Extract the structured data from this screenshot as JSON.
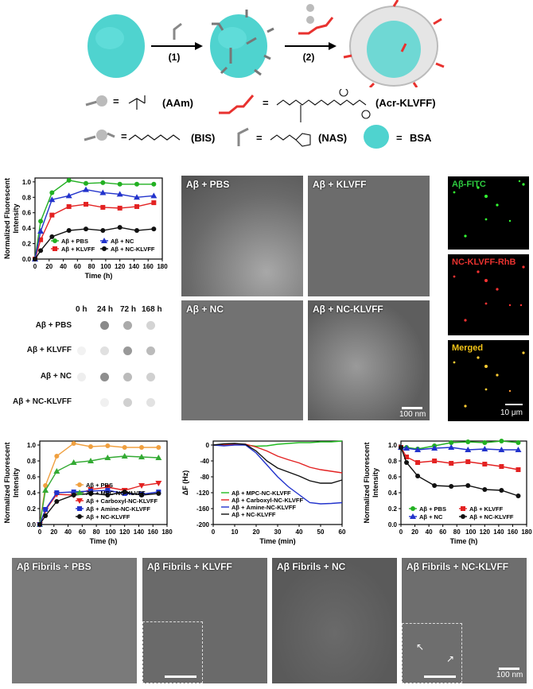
{
  "scheme": {
    "step1_label": "(1)",
    "step2_label": "(2)",
    "legend": [
      {
        "symbol": "ball-single-arm",
        "equals": "=",
        "name": "(AAm)"
      },
      {
        "symbol": "ball-double-arm",
        "equals": "=",
        "name": "(BIS)"
      },
      {
        "symbol": "red-arrow-peptide",
        "equals": "=",
        "name": "(Acr-KLVFF)"
      },
      {
        "symbol": "vinyl-linker",
        "equals": "=",
        "name": "(NAS)"
      },
      {
        "symbol": "protein-blob",
        "equals": "=",
        "name": "BSA"
      }
    ],
    "colors": {
      "bsa": "#4fd3cf",
      "peptide": "#e8322f",
      "shell": "#c8c8c8"
    }
  },
  "tem_top": {
    "panels": [
      {
        "label": "Aβ + PBS"
      },
      {
        "label": "Aβ + KLVFF"
      },
      {
        "label": "Aβ + NC"
      },
      {
        "label": "Aβ + NC-KLVFF"
      }
    ],
    "scale": "100 nm"
  },
  "fluorescence": {
    "panels": [
      {
        "label": "Aβ-FITC",
        "color": "#2ecc40"
      },
      {
        "label": "NC-KLVFF-RhB",
        "color": "#e8322f"
      },
      {
        "label": "Merged",
        "color": "#f5c518"
      }
    ],
    "scale": "10 μm"
  },
  "dot_blot": {
    "columns": [
      "0 h",
      "24 h",
      "72 h",
      "168 h"
    ],
    "rows": [
      "Aβ + PBS",
      "Aβ + KLVFF",
      "Aβ + NC",
      "Aβ + NC-KLVFF"
    ]
  },
  "tem_bottom": {
    "panels": [
      {
        "label": "Aβ Fibrils + PBS"
      },
      {
        "label": "Aβ Fibrils + KLVFF"
      },
      {
        "label": "Aβ Fibrils + NC"
      },
      {
        "label": "Aβ Fibrils + NC-KLVFF"
      }
    ],
    "scale": "100 nm"
  },
  "chart_data": [
    {
      "type": "line",
      "title": "",
      "xlabel": "Time (h)",
      "ylabel": "Normalized Fluorescent Intensity",
      "xlim": [
        0,
        180
      ],
      "ylim": [
        0,
        1.05
      ],
      "xticks": [
        0,
        20,
        40,
        60,
        80,
        100,
        120,
        140,
        160,
        180
      ],
      "yticks": [
        0.0,
        0.2,
        0.4,
        0.6,
        0.8,
        1.0
      ],
      "x": [
        0,
        8,
        24,
        48,
        72,
        96,
        120,
        144,
        168
      ],
      "series": [
        {
          "name": "Aβ + PBS",
          "color": "#22b022",
          "marker": "circle",
          "values": [
            0.0,
            0.49,
            0.86,
            1.02,
            0.98,
            0.99,
            0.97,
            0.97,
            0.97
          ]
        },
        {
          "name": "Aβ + KLVFF",
          "color": "#e32222",
          "marker": "square",
          "values": [
            0.0,
            0.25,
            0.57,
            0.68,
            0.71,
            0.67,
            0.66,
            0.68,
            0.73
          ]
        },
        {
          "name": "Aβ + NC",
          "color": "#2233cc",
          "marker": "triangle",
          "values": [
            0.0,
            0.36,
            0.77,
            0.82,
            0.9,
            0.86,
            0.84,
            0.8,
            0.82
          ]
        },
        {
          "name": "Aβ + NC-KLVFF",
          "color": "#111111",
          "marker": "circle",
          "values": [
            0.0,
            0.11,
            0.29,
            0.37,
            0.39,
            0.37,
            0.41,
            0.37,
            0.39
          ]
        }
      ],
      "legend_position": "lower-inside"
    },
    {
      "type": "line",
      "title": "",
      "xlabel": "Time (h)",
      "ylabel": "Normalized Fluorescent Intensity",
      "xlim": [
        0,
        180
      ],
      "ylim": [
        0,
        1.05
      ],
      "xticks": [
        0,
        20,
        40,
        60,
        80,
        100,
        120,
        140,
        160,
        180
      ],
      "yticks": [
        0.0,
        0.2,
        0.4,
        0.6,
        0.8,
        1.0
      ],
      "x": [
        0,
        8,
        24,
        48,
        72,
        96,
        120,
        144,
        168
      ],
      "series": [
        {
          "name": "Aβ + PBS",
          "color": "#f0a040",
          "marker": "circle",
          "values": [
            0.0,
            0.49,
            0.86,
            1.02,
            0.98,
            0.99,
            0.97,
            0.97,
            0.97
          ]
        },
        {
          "name": "Aβ + MPC-NC-KLVFF",
          "color": "#33aa33",
          "marker": "triangle",
          "values": [
            0.0,
            0.43,
            0.67,
            0.78,
            0.8,
            0.84,
            0.86,
            0.85,
            0.84
          ]
        },
        {
          "name": "Aβ + Carboxyl-NC-KLVFF",
          "color": "#e32222",
          "marker": "triangle-down",
          "values": [
            0.0,
            0.18,
            0.38,
            0.37,
            0.44,
            0.47,
            0.43,
            0.49,
            0.52
          ]
        },
        {
          "name": "Aβ + Amine-NC-KLVFF",
          "color": "#2233cc",
          "marker": "square",
          "values": [
            0.0,
            0.19,
            0.4,
            0.41,
            0.42,
            0.43,
            0.39,
            0.38,
            0.41
          ]
        },
        {
          "name": "Aβ + NC-KLVFF",
          "color": "#111111",
          "marker": "circle",
          "values": [
            0.0,
            0.11,
            0.29,
            0.37,
            0.39,
            0.37,
            0.41,
            0.37,
            0.39
          ]
        }
      ],
      "legend_position": "lower-right-inside"
    },
    {
      "type": "line",
      "title": "",
      "xlabel": "Time (min)",
      "ylabel": "ΔF (Hz)",
      "xlim": [
        0,
        60
      ],
      "ylim": [
        -200,
        10
      ],
      "xticks": [
        0,
        10,
        20,
        30,
        40,
        50,
        60
      ],
      "yticks": [
        0,
        -40,
        -80,
        -120,
        -160,
        -200
      ],
      "x": [
        0,
        5,
        10,
        15,
        20,
        25,
        30,
        35,
        40,
        45,
        50,
        55,
        60
      ],
      "series": [
        {
          "name": "Aβ + MPC-NC-KLVFF",
          "color": "#22bb22",
          "values": [
            0,
            0,
            2,
            0,
            -3,
            -2,
            2,
            4,
            6,
            6,
            8,
            8,
            10
          ]
        },
        {
          "name": "Aβ + Carboxyl-NC-KLVFF",
          "color": "#e32222",
          "values": [
            0,
            0,
            2,
            2,
            -5,
            -15,
            -28,
            -37,
            -45,
            -56,
            -62,
            -66,
            -70
          ]
        },
        {
          "name": "Aβ + Amine-NC-KLVFF",
          "color": "#2233cc",
          "values": [
            0,
            -2,
            0,
            0,
            -20,
            -50,
            -80,
            -105,
            -125,
            -145,
            -148,
            -147,
            -145
          ]
        },
        {
          "name": "Aβ + NC-KLVFF",
          "color": "#111111",
          "values": [
            0,
            3,
            4,
            2,
            -15,
            -40,
            -58,
            -68,
            -78,
            -90,
            -96,
            -96,
            -88
          ]
        }
      ],
      "legend_position": "lower-left-inside"
    },
    {
      "type": "line",
      "title": "",
      "xlabel": "Time (h)",
      "ylabel": "Normalized Fluorescent Intensity",
      "xlim": [
        0,
        180
      ],
      "ylim": [
        0,
        1.05
      ],
      "xticks": [
        0,
        20,
        40,
        60,
        80,
        100,
        120,
        140,
        160,
        180
      ],
      "yticks": [
        0.0,
        0.2,
        0.4,
        0.6,
        0.8,
        1.0
      ],
      "x": [
        0,
        8,
        24,
        48,
        72,
        96,
        120,
        144,
        168
      ],
      "series": [
        {
          "name": "Aβ + PBS",
          "color": "#22b022",
          "marker": "circle",
          "values": [
            0.97,
            0.97,
            0.95,
            0.99,
            1.03,
            1.04,
            1.03,
            1.05,
            1.03
          ]
        },
        {
          "name": "Aβ + KLVFF",
          "color": "#e32222",
          "marker": "square",
          "values": [
            0.97,
            0.85,
            0.78,
            0.8,
            0.77,
            0.79,
            0.76,
            0.73,
            0.69
          ]
        },
        {
          "name": "Aβ + NC",
          "color": "#2233cc",
          "marker": "triangle",
          "values": [
            0.97,
            0.96,
            0.94,
            0.96,
            0.97,
            0.94,
            0.95,
            0.94,
            0.94
          ]
        },
        {
          "name": "Aβ + NC-KLVFF",
          "color": "#111111",
          "marker": "circle",
          "values": [
            0.97,
            0.78,
            0.61,
            0.49,
            0.48,
            0.49,
            0.44,
            0.43,
            0.36
          ]
        }
      ],
      "legend_position": "lower-inside"
    }
  ]
}
